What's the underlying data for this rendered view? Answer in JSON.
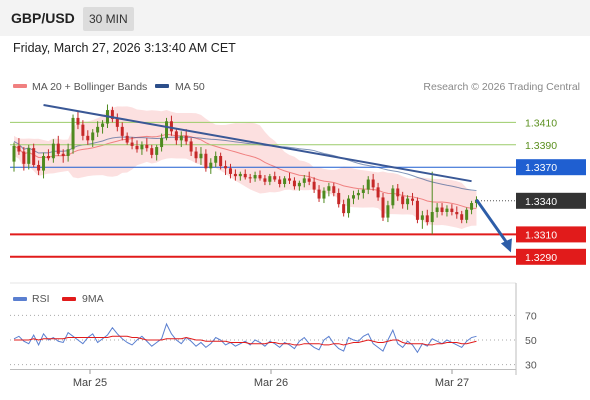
{
  "header": {
    "pair": "GBP/USD",
    "timeframe": "30 MIN"
  },
  "datetime": "Friday, March 27, 2026 3:13:40 AM CET",
  "legend": {
    "ma20": "MA 20 + Bollinger Bands",
    "ma50": "MA 50",
    "credit": "Research © 2026 Trading Central"
  },
  "rsi_legend": {
    "rsi": "RSI",
    "ma9": "9MA"
  },
  "colors": {
    "up": "#4e8a1f",
    "down": "#c62828",
    "ma20": "#f08080",
    "ma50": "#2c4e8a",
    "bands": "#fbdada",
    "trend": "#3a5896",
    "resistance": "#1f5fd1",
    "support": "#e11b1b",
    "target": "#9ccb6a",
    "last": "#333333"
  },
  "chart_data": [
    {
      "type": "candlestick",
      "title": "",
      "y_range": [
        1.3275,
        1.343
      ],
      "x_ticks": [
        "Mar 25",
        "Mar 26",
        "Mar 27"
      ],
      "last_price": 1.334,
      "levels": [
        {
          "label": "1.3410",
          "value": 1.341,
          "kind": "target"
        },
        {
          "label": "1.3390",
          "value": 1.339,
          "kind": "target"
        },
        {
          "label": "1.3370",
          "value": 1.337,
          "kind": "resistance"
        },
        {
          "label": "1.3340",
          "value": 1.334,
          "kind": "last"
        },
        {
          "label": "1.3310",
          "value": 1.331,
          "kind": "support"
        },
        {
          "label": "1.3290",
          "value": 1.329,
          "kind": "support"
        }
      ],
      "trendline": {
        "from": [
          6,
          1.34255
        ],
        "to": [
          93,
          1.33575
        ]
      },
      "projection": {
        "from": [
          94,
          1.3341
        ],
        "to": [
          101,
          1.3294
        ]
      },
      "candles": [
        [
          1.3375,
          1.3392,
          1.3366,
          1.3389
        ],
        [
          1.3389,
          1.3396,
          1.3381,
          1.3384
        ],
        [
          1.3384,
          1.3388,
          1.3367,
          1.3373
        ],
        [
          1.3373,
          1.339,
          1.3368,
          1.3387
        ],
        [
          1.3387,
          1.3391,
          1.337,
          1.3372
        ],
        [
          1.3372,
          1.3376,
          1.3363,
          1.3367
        ],
        [
          1.3367,
          1.3383,
          1.336,
          1.338
        ],
        [
          1.338,
          1.3386,
          1.3376,
          1.3378
        ],
        [
          1.3378,
          1.3395,
          1.3374,
          1.3391
        ],
        [
          1.3391,
          1.3398,
          1.338,
          1.3382
        ],
        [
          1.3382,
          1.3386,
          1.3374,
          1.338
        ],
        [
          1.338,
          1.3391,
          1.3375,
          1.3386
        ],
        [
          1.3386,
          1.3417,
          1.3382,
          1.3414
        ],
        [
          1.3414,
          1.342,
          1.3404,
          1.3408
        ],
        [
          1.3408,
          1.3412,
          1.3394,
          1.3398
        ],
        [
          1.3398,
          1.3403,
          1.339,
          1.3394
        ],
        [
          1.3394,
          1.3404,
          1.3388,
          1.3401
        ],
        [
          1.3401,
          1.3411,
          1.3397,
          1.3406
        ],
        [
          1.3406,
          1.3412,
          1.34,
          1.3409
        ],
        [
          1.3409,
          1.3426,
          1.3405,
          1.3421
        ],
        [
          1.3421,
          1.3424,
          1.341,
          1.3413
        ],
        [
          1.3413,
          1.3418,
          1.3402,
          1.3406
        ],
        [
          1.3406,
          1.341,
          1.3394,
          1.3398
        ],
        [
          1.3398,
          1.3401,
          1.339,
          1.3392
        ],
        [
          1.3392,
          1.3397,
          1.3386,
          1.3389
        ],
        [
          1.3389,
          1.3394,
          1.3383,
          1.3386
        ],
        [
          1.3386,
          1.3393,
          1.3381,
          1.339
        ],
        [
          1.339,
          1.3396,
          1.3384,
          1.3387
        ],
        [
          1.3387,
          1.339,
          1.3378,
          1.3381
        ],
        [
          1.3381,
          1.339,
          1.3376,
          1.3388
        ],
        [
          1.3388,
          1.34,
          1.3384,
          1.3396
        ],
        [
          1.3396,
          1.3414,
          1.3394,
          1.3411
        ],
        [
          1.3411,
          1.3416,
          1.3398,
          1.3402
        ],
        [
          1.3402,
          1.3405,
          1.339,
          1.3394
        ],
        [
          1.3394,
          1.3402,
          1.3388,
          1.3398
        ],
        [
          1.3398,
          1.3404,
          1.339,
          1.3393
        ],
        [
          1.3393,
          1.3396,
          1.338,
          1.3384
        ],
        [
          1.3384,
          1.3388,
          1.3374,
          1.3378
        ],
        [
          1.3378,
          1.3388,
          1.3372,
          1.3382
        ],
        [
          1.3382,
          1.3386,
          1.3366,
          1.3369
        ],
        [
          1.3369,
          1.3378,
          1.3364,
          1.3374
        ],
        [
          1.3374,
          1.3384,
          1.337,
          1.338
        ],
        [
          1.338,
          1.3383,
          1.3368,
          1.3371
        ],
        [
          1.3371,
          1.3376,
          1.3363,
          1.3369
        ],
        [
          1.3369,
          1.3373,
          1.336,
          1.3364
        ],
        [
          1.3364,
          1.3368,
          1.3358,
          1.3362
        ],
        [
          1.3362,
          1.3366,
          1.3358,
          1.3364
        ],
        [
          1.3364,
          1.3368,
          1.3359,
          1.3361
        ],
        [
          1.3361,
          1.3364,
          1.3356,
          1.336
        ],
        [
          1.336,
          1.3366,
          1.3357,
          1.3363
        ],
        [
          1.3363,
          1.3367,
          1.3358,
          1.336
        ],
        [
          1.336,
          1.3363,
          1.3354,
          1.3357
        ],
        [
          1.3357,
          1.3364,
          1.3354,
          1.3362
        ],
        [
          1.3362,
          1.3366,
          1.3357,
          1.3359
        ],
        [
          1.3359,
          1.3362,
          1.3352,
          1.3355
        ],
        [
          1.3355,
          1.3362,
          1.3352,
          1.336
        ],
        [
          1.336,
          1.3365,
          1.3355,
          1.3358
        ],
        [
          1.3358,
          1.3361,
          1.335,
          1.3353
        ],
        [
          1.3353,
          1.3358,
          1.3349,
          1.3356
        ],
        [
          1.3356,
          1.3363,
          1.3352,
          1.336
        ],
        [
          1.336,
          1.3366,
          1.3354,
          1.3357
        ],
        [
          1.3357,
          1.3361,
          1.3347,
          1.335
        ],
        [
          1.335,
          1.3354,
          1.3339,
          1.3342
        ],
        [
          1.3342,
          1.3352,
          1.3338,
          1.3349
        ],
        [
          1.3349,
          1.3356,
          1.3344,
          1.3353
        ],
        [
          1.3353,
          1.3356,
          1.3344,
          1.3347
        ],
        [
          1.3347,
          1.3351,
          1.3334,
          1.3337
        ],
        [
          1.3337,
          1.3341,
          1.3326,
          1.3329
        ],
        [
          1.3329,
          1.3345,
          1.3325,
          1.3342
        ],
        [
          1.3342,
          1.3349,
          1.3337,
          1.3345
        ],
        [
          1.3345,
          1.335,
          1.3341,
          1.3347
        ],
        [
          1.3347,
          1.3354,
          1.3342,
          1.335
        ],
        [
          1.335,
          1.3362,
          1.3346,
          1.3359
        ],
        [
          1.3359,
          1.3364,
          1.3349,
          1.3352
        ],
        [
          1.3352,
          1.3356,
          1.334,
          1.3343
        ],
        [
          1.3343,
          1.3347,
          1.3322,
          1.3325
        ],
        [
          1.3325,
          1.334,
          1.3321,
          1.3336
        ],
        [
          1.3336,
          1.3354,
          1.3333,
          1.3351
        ],
        [
          1.3351,
          1.3355,
          1.334,
          1.3344
        ],
        [
          1.3344,
          1.3348,
          1.3333,
          1.3337
        ],
        [
          1.3337,
          1.3345,
          1.3332,
          1.3342
        ],
        [
          1.3342,
          1.3347,
          1.3336,
          1.334
        ],
        [
          1.334,
          1.3343,
          1.332,
          1.3323
        ],
        [
          1.3323,
          1.3331,
          1.3315,
          1.3327
        ],
        [
          1.3327,
          1.3332,
          1.3318,
          1.3321
        ],
        [
          1.3321,
          1.3366,
          1.331,
          1.333
        ],
        [
          1.333,
          1.3338,
          1.3325,
          1.3334
        ],
        [
          1.3334,
          1.3338,
          1.3327,
          1.333
        ],
        [
          1.333,
          1.3336,
          1.3326,
          1.3333
        ],
        [
          1.3333,
          1.3337,
          1.3327,
          1.333
        ],
        [
          1.333,
          1.3335,
          1.3324,
          1.3328
        ],
        [
          1.3328,
          1.3331,
          1.332,
          1.3323
        ],
        [
          1.3323,
          1.3334,
          1.332,
          1.3332
        ],
        [
          1.3332,
          1.334,
          1.3328,
          1.3338
        ],
        [
          1.3338,
          1.3344,
          1.3334,
          1.3341
        ]
      ]
    },
    {
      "type": "line",
      "title": "",
      "y_range": [
        20,
        80
      ],
      "y_ticks": [
        "70",
        "50",
        "30"
      ],
      "series": [
        {
          "name": "RSI",
          "values": [
            51,
            53,
            49,
            47,
            54,
            46,
            55,
            50,
            52,
            49,
            48,
            56,
            53,
            50,
            47,
            52,
            55,
            48,
            51,
            54,
            60,
            55,
            51,
            48,
            46,
            50,
            53,
            49,
            45,
            48,
            51,
            63,
            55,
            50,
            47,
            52,
            49,
            45,
            48,
            44,
            47,
            52,
            50,
            46,
            48,
            45,
            47,
            49,
            46,
            50,
            48,
            45,
            49,
            47,
            44,
            48,
            46,
            43,
            49,
            52,
            47,
            44,
            42,
            50,
            53,
            47,
            43,
            41,
            52,
            50,
            49,
            53,
            55,
            47,
            44,
            41,
            50,
            58,
            47,
            44,
            49,
            46,
            40,
            47,
            45,
            51,
            49,
            47,
            50,
            48,
            46,
            44,
            49,
            52,
            53
          ]
        },
        {
          "name": "9MA",
          "values": [
            50,
            50,
            50,
            50,
            51,
            50,
            51,
            51,
            51,
            51,
            51,
            52,
            52,
            52,
            52,
            52,
            52,
            52,
            52,
            52,
            53,
            53,
            53,
            53,
            52,
            52,
            51,
            50,
            50,
            50,
            50,
            51,
            51,
            51,
            51,
            52,
            51,
            50,
            50,
            49,
            49,
            49,
            49,
            49,
            48,
            48,
            48,
            48,
            47,
            47,
            47,
            47,
            48,
            48,
            47,
            47,
            47,
            46,
            46,
            47,
            47,
            47,
            47,
            46,
            46,
            47,
            47,
            46,
            47,
            48,
            48,
            49,
            50,
            49,
            48,
            48,
            49,
            50,
            50,
            48,
            47,
            47,
            47,
            47,
            46,
            46,
            47,
            47,
            48,
            48,
            48,
            47,
            47,
            48,
            49
          ]
        }
      ]
    }
  ]
}
